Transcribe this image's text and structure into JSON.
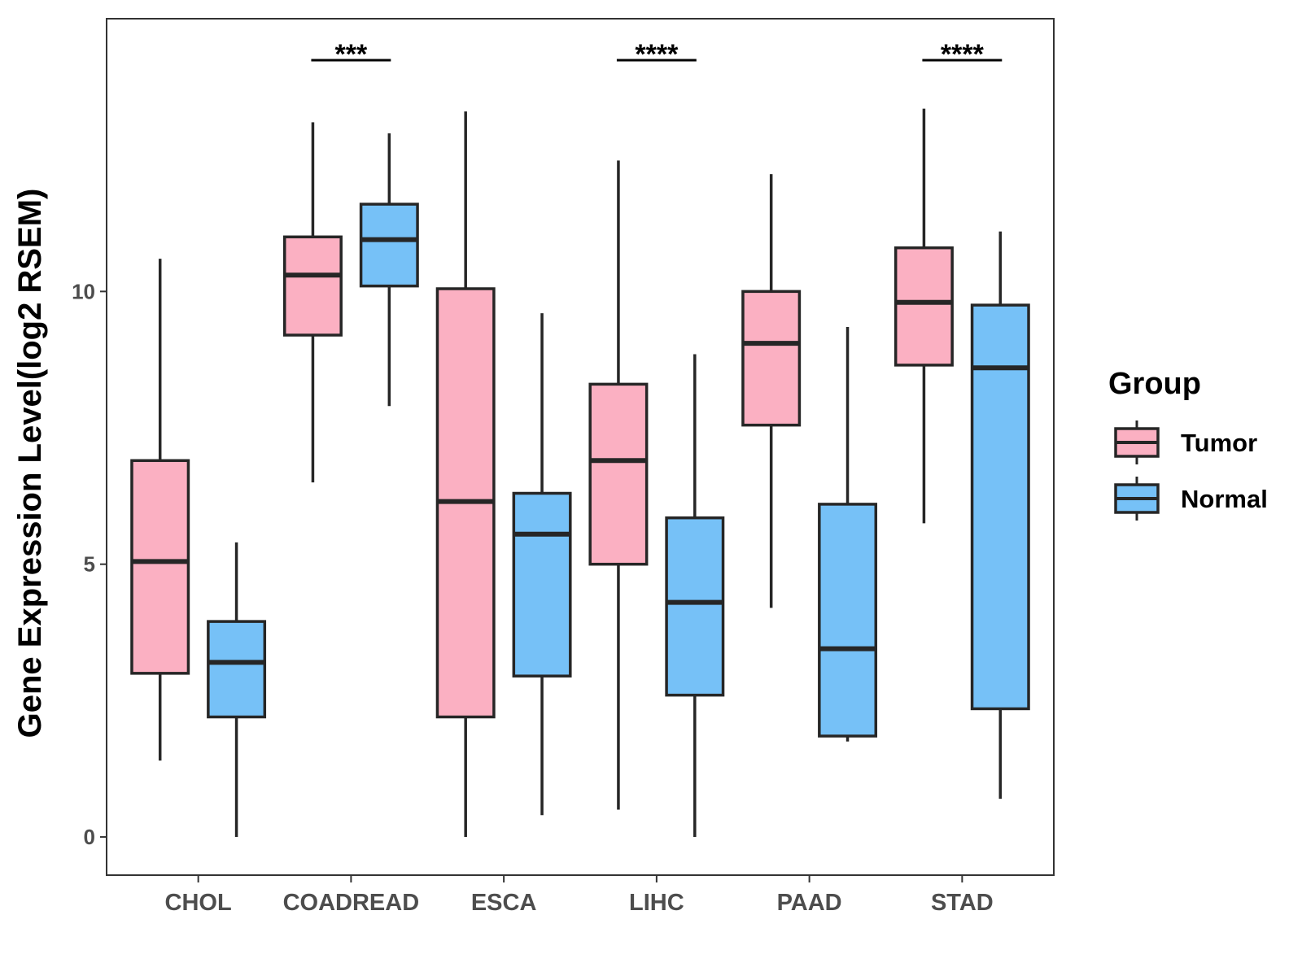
{
  "chart_data": {
    "type": "boxplot",
    "title": "",
    "xlabel": "",
    "ylabel": "Gene Expression Level(log2 RSEM)",
    "ylim": [
      -0.7,
      15.0
    ],
    "yticks": [
      0,
      5,
      10
    ],
    "categories": [
      "CHOL",
      "COADREAD",
      "ESCA",
      "LIHC",
      "PAAD",
      "STAD"
    ],
    "legend": {
      "title": "Group",
      "position": "right",
      "entries": [
        {
          "name": "Tumor",
          "color": "#fbb0c2"
        },
        {
          "name": "Normal",
          "color": "#76c1f7"
        }
      ]
    },
    "series": [
      {
        "name": "Tumor",
        "color": "#fbb0c2",
        "boxes": [
          {
            "category": "CHOL",
            "min": 1.4,
            "q1": 3.0,
            "median": 5.05,
            "q3": 6.9,
            "max": 10.6
          },
          {
            "category": "COADREAD",
            "min": 6.5,
            "q1": 9.2,
            "median": 10.3,
            "q3": 11.0,
            "max": 13.1
          },
          {
            "category": "ESCA",
            "min": 0.0,
            "q1": 2.2,
            "median": 6.15,
            "q3": 10.05,
            "max": 13.3
          },
          {
            "category": "LIHC",
            "min": 0.5,
            "q1": 5.0,
            "median": 6.9,
            "q3": 8.3,
            "max": 12.4
          },
          {
            "category": "PAAD",
            "min": 4.2,
            "q1": 7.55,
            "median": 9.05,
            "q3": 10.0,
            "max": 12.15
          },
          {
            "category": "STAD",
            "min": 5.75,
            "q1": 8.65,
            "median": 9.8,
            "q3": 10.8,
            "max": 13.35
          }
        ]
      },
      {
        "name": "Normal",
        "color": "#76c1f7",
        "boxes": [
          {
            "category": "CHOL",
            "min": 0.0,
            "q1": 2.2,
            "median": 3.2,
            "q3": 3.95,
            "max": 5.4
          },
          {
            "category": "COADREAD",
            "min": 7.9,
            "q1": 10.1,
            "median": 10.95,
            "q3": 11.6,
            "max": 12.9
          },
          {
            "category": "ESCA",
            "min": 0.4,
            "q1": 2.95,
            "median": 5.55,
            "q3": 6.3,
            "max": 9.6
          },
          {
            "category": "LIHC",
            "min": 0.0,
            "q1": 2.6,
            "median": 4.3,
            "q3": 5.85,
            "max": 8.85
          },
          {
            "category": "PAAD",
            "min": 1.75,
            "q1": 1.85,
            "median": 3.45,
            "q3": 6.1,
            "max": 9.35
          },
          {
            "category": "STAD",
            "min": 0.7,
            "q1": 2.35,
            "median": 8.6,
            "q3": 9.75,
            "max": 11.1
          }
        ]
      }
    ],
    "significance": [
      {
        "category": "COADREAD",
        "label": "***"
      },
      {
        "category": "LIHC",
        "label": "****"
      },
      {
        "category": "STAD",
        "label": "****"
      }
    ]
  }
}
